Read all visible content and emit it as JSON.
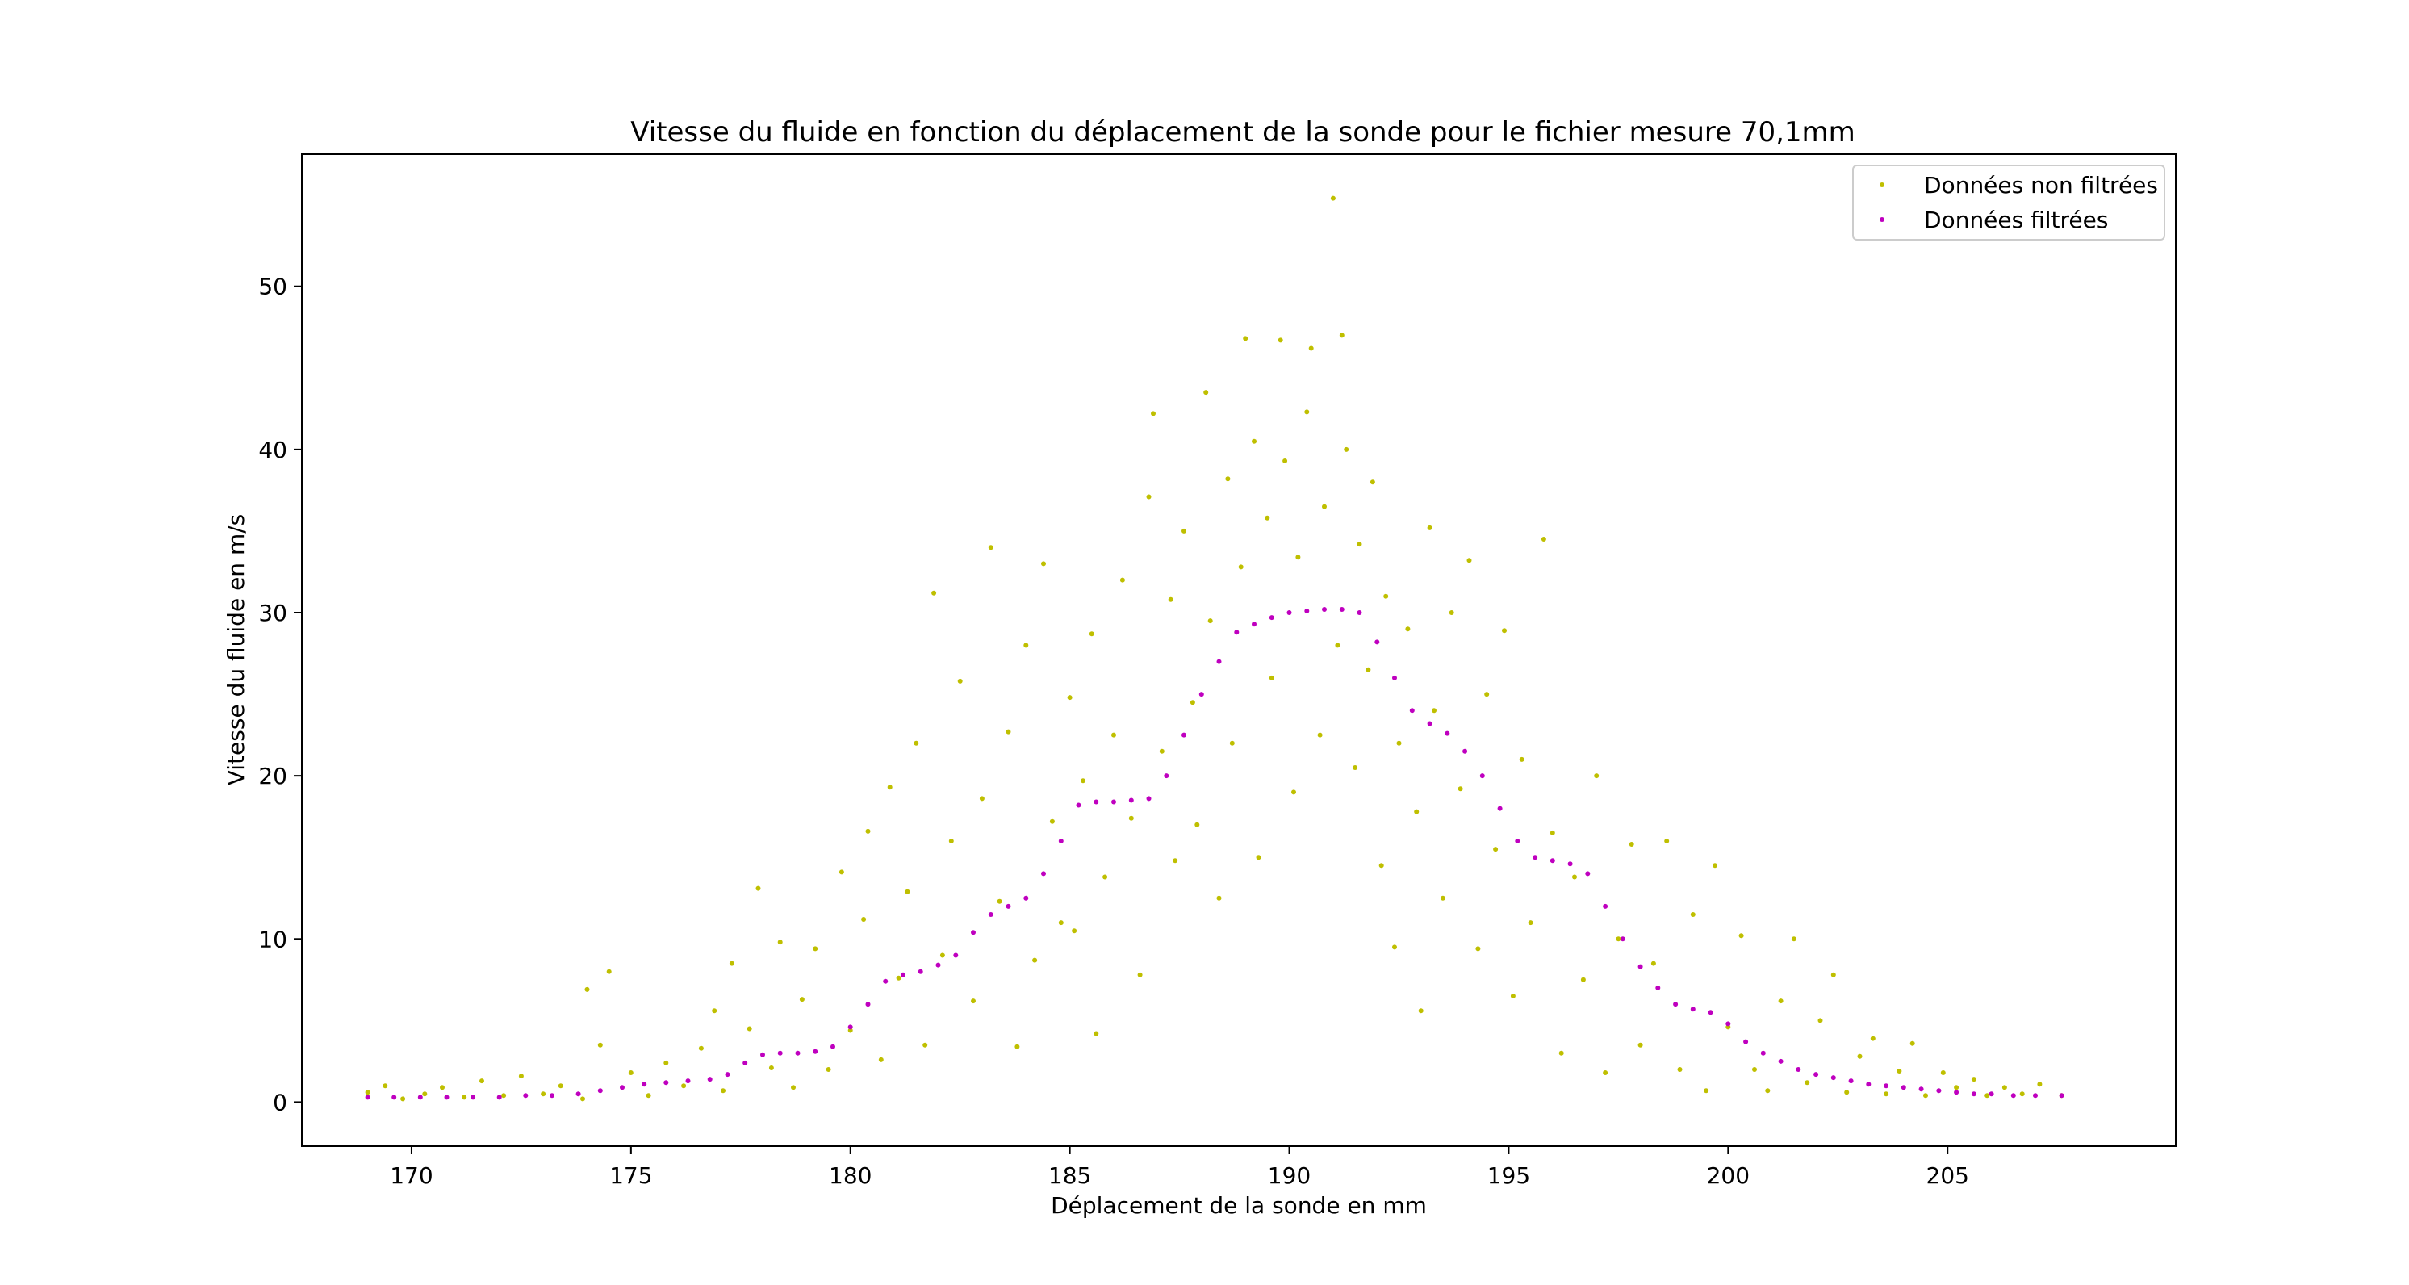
{
  "chart_data": {
    "type": "scatter",
    "title": "Vitesse du fluide en fonction du déplacement de la sonde pour le fichier mesure 70,1mm",
    "xlabel": "Déplacement de la sonde en mm",
    "ylabel": "Vitesse du fluide en m/s",
    "xlim": [
      167.5,
      210.2
    ],
    "ylim": [
      -2.7,
      58.1
    ],
    "xticks": [
      170,
      175,
      180,
      185,
      190,
      195,
      200,
      205
    ],
    "yticks": [
      0,
      10,
      20,
      30,
      40,
      50
    ],
    "grid": false,
    "legend_position": "top-right",
    "series": [
      {
        "name": "Données non filtrées",
        "color": "#bfbf00",
        "points": [
          [
            169.0,
            0.6
          ],
          [
            169.4,
            1.0
          ],
          [
            169.8,
            0.2
          ],
          [
            170.3,
            0.5
          ],
          [
            170.7,
            0.9
          ],
          [
            171.2,
            0.3
          ],
          [
            171.6,
            1.3
          ],
          [
            172.1,
            0.4
          ],
          [
            172.5,
            1.6
          ],
          [
            173.0,
            0.5
          ],
          [
            173.4,
            1.0
          ],
          [
            173.9,
            0.2
          ],
          [
            174.0,
            6.9
          ],
          [
            174.5,
            8.0
          ],
          [
            174.3,
            3.5
          ],
          [
            175.0,
            1.8
          ],
          [
            175.4,
            0.4
          ],
          [
            175.8,
            2.4
          ],
          [
            176.2,
            1.0
          ],
          [
            176.6,
            3.3
          ],
          [
            176.9,
            5.6
          ],
          [
            177.1,
            0.7
          ],
          [
            177.3,
            8.5
          ],
          [
            177.7,
            4.5
          ],
          [
            177.9,
            13.1
          ],
          [
            178.2,
            2.1
          ],
          [
            178.4,
            9.8
          ],
          [
            178.7,
            0.9
          ],
          [
            178.9,
            6.3
          ],
          [
            179.2,
            9.4
          ],
          [
            179.5,
            2.0
          ],
          [
            179.8,
            14.1
          ],
          [
            180.0,
            4.4
          ],
          [
            180.3,
            11.2
          ],
          [
            180.4,
            16.6
          ],
          [
            180.7,
            2.6
          ],
          [
            180.9,
            19.3
          ],
          [
            181.1,
            7.6
          ],
          [
            181.3,
            12.9
          ],
          [
            181.5,
            22.0
          ],
          [
            181.7,
            3.5
          ],
          [
            181.9,
            31.2
          ],
          [
            182.1,
            9.0
          ],
          [
            182.3,
            16.0
          ],
          [
            182.5,
            25.8
          ],
          [
            182.8,
            6.2
          ],
          [
            183.0,
            18.6
          ],
          [
            183.2,
            34.0
          ],
          [
            183.4,
            12.3
          ],
          [
            183.6,
            22.7
          ],
          [
            183.8,
            3.4
          ],
          [
            184.0,
            28.0
          ],
          [
            184.2,
            8.7
          ],
          [
            184.4,
            33.0
          ],
          [
            184.6,
            17.2
          ],
          [
            184.8,
            11.0
          ],
          [
            185.0,
            24.8
          ],
          [
            185.1,
            10.5
          ],
          [
            185.3,
            19.7
          ],
          [
            185.5,
            28.7
          ],
          [
            185.6,
            4.2
          ],
          [
            185.8,
            13.8
          ],
          [
            186.0,
            22.5
          ],
          [
            186.2,
            32.0
          ],
          [
            186.4,
            17.4
          ],
          [
            186.6,
            7.8
          ],
          [
            186.8,
            37.1
          ],
          [
            186.9,
            42.2
          ],
          [
            187.1,
            21.5
          ],
          [
            187.3,
            30.8
          ],
          [
            187.4,
            14.8
          ],
          [
            187.6,
            35.0
          ],
          [
            187.8,
            24.5
          ],
          [
            187.9,
            17.0
          ],
          [
            188.1,
            43.5
          ],
          [
            188.2,
            29.5
          ],
          [
            188.4,
            12.5
          ],
          [
            188.6,
            38.2
          ],
          [
            188.7,
            22.0
          ],
          [
            188.9,
            32.8
          ],
          [
            189.0,
            46.8
          ],
          [
            189.2,
            40.5
          ],
          [
            189.3,
            15.0
          ],
          [
            189.5,
            35.8
          ],
          [
            189.6,
            26.0
          ],
          [
            189.8,
            46.7
          ],
          [
            189.9,
            39.3
          ],
          [
            190.1,
            19.0
          ],
          [
            190.2,
            33.4
          ],
          [
            190.4,
            42.3
          ],
          [
            190.5,
            46.2
          ],
          [
            190.7,
            22.5
          ],
          [
            190.8,
            36.5
          ],
          [
            191.0,
            55.4
          ],
          [
            191.1,
            28.0
          ],
          [
            191.2,
            47.0
          ],
          [
            191.3,
            40.0
          ],
          [
            191.5,
            20.5
          ],
          [
            191.6,
            34.2
          ],
          [
            191.8,
            26.5
          ],
          [
            191.9,
            38.0
          ],
          [
            192.1,
            14.5
          ],
          [
            192.2,
            31.0
          ],
          [
            192.4,
            9.5
          ],
          [
            192.5,
            22.0
          ],
          [
            192.7,
            29.0
          ],
          [
            192.9,
            17.8
          ],
          [
            193.0,
            5.6
          ],
          [
            193.2,
            35.2
          ],
          [
            193.3,
            24.0
          ],
          [
            193.5,
            12.5
          ],
          [
            193.7,
            30.0
          ],
          [
            193.9,
            19.2
          ],
          [
            194.1,
            33.2
          ],
          [
            194.3,
            9.4
          ],
          [
            194.5,
            25.0
          ],
          [
            194.7,
            15.5
          ],
          [
            194.9,
            28.9
          ],
          [
            195.1,
            6.5
          ],
          [
            195.3,
            21.0
          ],
          [
            195.5,
            11.0
          ],
          [
            195.8,
            34.5
          ],
          [
            196.0,
            16.5
          ],
          [
            196.2,
            3.0
          ],
          [
            196.5,
            13.8
          ],
          [
            196.7,
            7.5
          ],
          [
            197.0,
            20.0
          ],
          [
            197.2,
            1.8
          ],
          [
            197.5,
            10.0
          ],
          [
            197.8,
            15.8
          ],
          [
            198.0,
            3.5
          ],
          [
            198.3,
            8.5
          ],
          [
            198.6,
            16.0
          ],
          [
            198.9,
            2.0
          ],
          [
            199.2,
            11.5
          ],
          [
            199.5,
            0.7
          ],
          [
            199.7,
            14.5
          ],
          [
            200.0,
            4.6
          ],
          [
            200.3,
            10.2
          ],
          [
            200.6,
            2.0
          ],
          [
            200.9,
            0.7
          ],
          [
            201.2,
            6.2
          ],
          [
            201.5,
            10.0
          ],
          [
            201.8,
            1.2
          ],
          [
            202.1,
            5.0
          ],
          [
            202.4,
            7.8
          ],
          [
            202.7,
            0.6
          ],
          [
            203.0,
            2.8
          ],
          [
            203.3,
            3.9
          ],
          [
            203.6,
            0.5
          ],
          [
            203.9,
            1.9
          ],
          [
            204.2,
            3.6
          ],
          [
            204.5,
            0.4
          ],
          [
            204.9,
            1.8
          ],
          [
            205.2,
            0.9
          ],
          [
            205.6,
            1.4
          ],
          [
            205.9,
            0.4
          ],
          [
            206.3,
            0.9
          ],
          [
            206.7,
            0.5
          ],
          [
            207.1,
            1.1
          ],
          [
            207.6,
            0.4
          ]
        ]
      },
      {
        "name": "Données filtrées",
        "color": "#bf00bf",
        "points": [
          [
            169.0,
            0.3
          ],
          [
            169.6,
            0.3
          ],
          [
            170.2,
            0.3
          ],
          [
            170.8,
            0.3
          ],
          [
            171.4,
            0.3
          ],
          [
            172.0,
            0.3
          ],
          [
            172.6,
            0.4
          ],
          [
            173.2,
            0.4
          ],
          [
            173.8,
            0.5
          ],
          [
            174.3,
            0.7
          ],
          [
            174.8,
            0.9
          ],
          [
            175.3,
            1.1
          ],
          [
            175.8,
            1.2
          ],
          [
            176.3,
            1.3
          ],
          [
            176.8,
            1.4
          ],
          [
            177.2,
            1.7
          ],
          [
            177.6,
            2.4
          ],
          [
            178.0,
            2.9
          ],
          [
            178.4,
            3.0
          ],
          [
            178.8,
            3.0
          ],
          [
            179.2,
            3.1
          ],
          [
            179.6,
            3.4
          ],
          [
            180.0,
            4.6
          ],
          [
            180.4,
            6.0
          ],
          [
            180.8,
            7.4
          ],
          [
            181.2,
            7.8
          ],
          [
            181.6,
            8.0
          ],
          [
            182.0,
            8.4
          ],
          [
            182.4,
            9.0
          ],
          [
            182.8,
            10.4
          ],
          [
            183.2,
            11.5
          ],
          [
            183.6,
            12.0
          ],
          [
            184.0,
            12.5
          ],
          [
            184.4,
            14.0
          ],
          [
            184.8,
            16.0
          ],
          [
            185.2,
            18.2
          ],
          [
            185.6,
            18.4
          ],
          [
            186.0,
            18.4
          ],
          [
            186.4,
            18.5
          ],
          [
            186.8,
            18.6
          ],
          [
            187.2,
            20.0
          ],
          [
            187.6,
            22.5
          ],
          [
            188.0,
            25.0
          ],
          [
            188.4,
            27.0
          ],
          [
            188.8,
            28.8
          ],
          [
            189.2,
            29.3
          ],
          [
            189.6,
            29.7
          ],
          [
            190.0,
            30.0
          ],
          [
            190.4,
            30.1
          ],
          [
            190.8,
            30.2
          ],
          [
            191.2,
            30.2
          ],
          [
            191.6,
            30.0
          ],
          [
            192.0,
            28.2
          ],
          [
            192.4,
            26.0
          ],
          [
            192.8,
            24.0
          ],
          [
            193.2,
            23.2
          ],
          [
            193.6,
            22.6
          ],
          [
            194.0,
            21.5
          ],
          [
            194.4,
            20.0
          ],
          [
            194.8,
            18.0
          ],
          [
            195.2,
            16.0
          ],
          [
            195.6,
            15.0
          ],
          [
            196.0,
            14.8
          ],
          [
            196.4,
            14.6
          ],
          [
            196.8,
            14.0
          ],
          [
            197.2,
            12.0
          ],
          [
            197.6,
            10.0
          ],
          [
            198.0,
            8.3
          ],
          [
            198.4,
            7.0
          ],
          [
            198.8,
            6.0
          ],
          [
            199.2,
            5.7
          ],
          [
            199.6,
            5.5
          ],
          [
            200.0,
            4.8
          ],
          [
            200.4,
            3.7
          ],
          [
            200.8,
            3.0
          ],
          [
            201.2,
            2.5
          ],
          [
            201.6,
            2.0
          ],
          [
            202.0,
            1.7
          ],
          [
            202.4,
            1.5
          ],
          [
            202.8,
            1.3
          ],
          [
            203.2,
            1.1
          ],
          [
            203.6,
            1.0
          ],
          [
            204.0,
            0.9
          ],
          [
            204.4,
            0.8
          ],
          [
            204.8,
            0.7
          ],
          [
            205.2,
            0.6
          ],
          [
            205.6,
            0.5
          ],
          [
            206.0,
            0.5
          ],
          [
            206.5,
            0.4
          ],
          [
            207.0,
            0.4
          ],
          [
            207.6,
            0.4
          ]
        ]
      }
    ]
  }
}
